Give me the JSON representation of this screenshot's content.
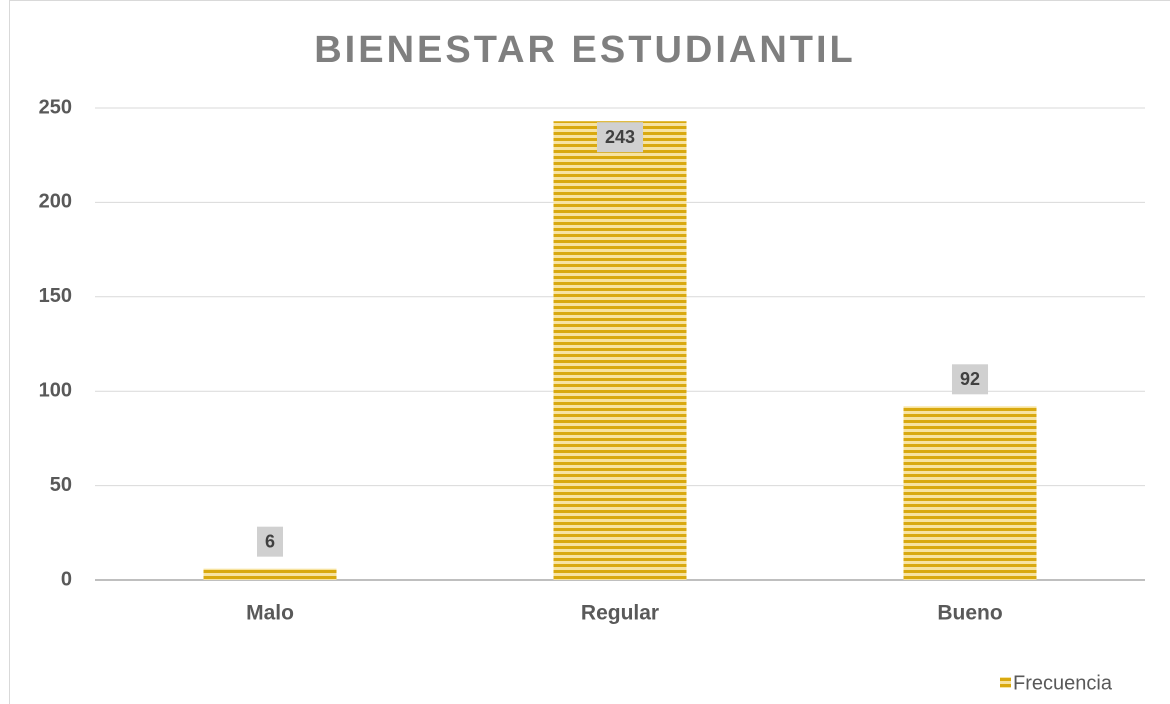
{
  "chart_data": {
    "type": "bar",
    "title": "BIENESTAR ESTUDIANTIL",
    "categories": [
      "Malo",
      "Regular",
      "Bueno"
    ],
    "series": [
      {
        "name": "Frecuencia",
        "color": "#d9a90f",
        "values": [
          6,
          243,
          92
        ]
      }
    ],
    "ylim": [
      0,
      250
    ],
    "yticks": [
      0,
      50,
      100,
      150,
      200,
      250
    ],
    "grid": true,
    "legend": "bottom-right"
  }
}
